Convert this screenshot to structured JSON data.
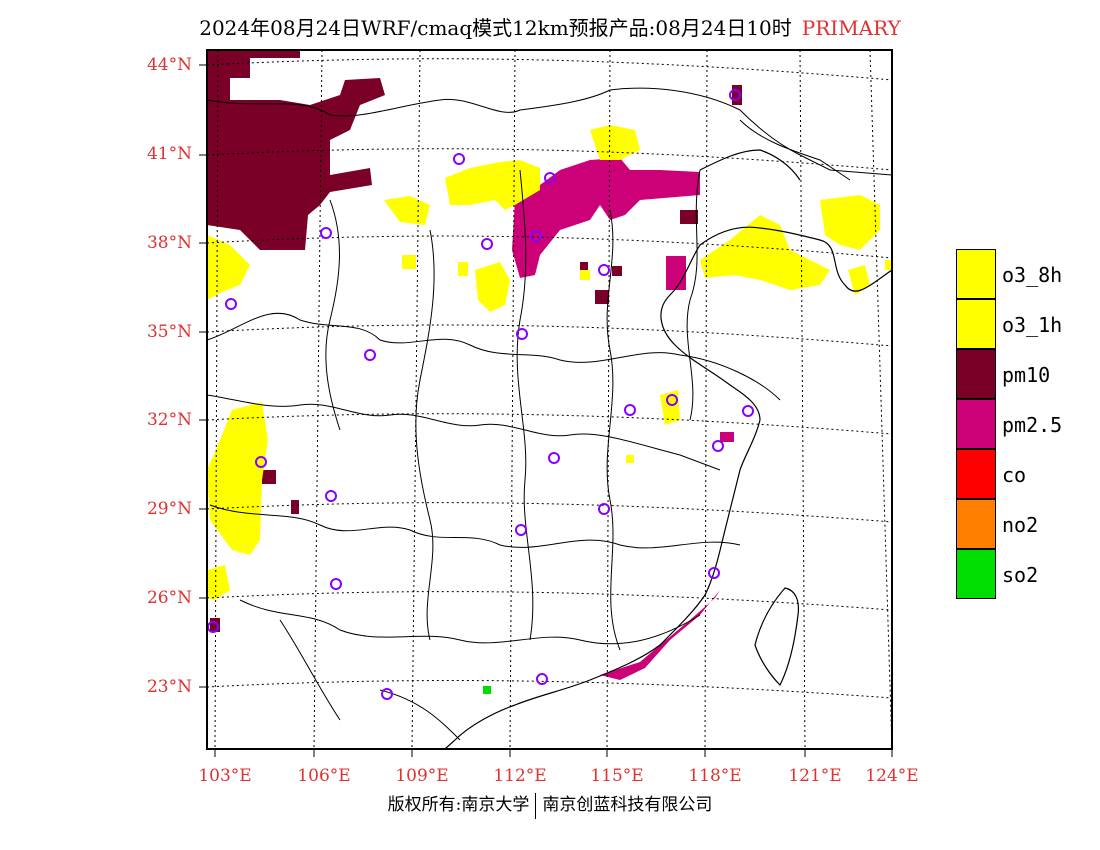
{
  "header": {
    "title": "2024年08月24日WRF/cmaq模式12km预报产品:08月24日10时",
    "tag": "PRIMARY"
  },
  "axes": {
    "lat_labels": [
      "44°N",
      "41°N",
      "38°N",
      "35°N",
      "32°N",
      "29°N",
      "26°N",
      "23°N"
    ],
    "lon_labels": [
      "103°E",
      "106°E",
      "109°E",
      "112°E",
      "115°E",
      "118°E",
      "121°E",
      "124°E"
    ]
  },
  "legend": {
    "items": [
      {
        "label": "o3_8h",
        "color": "#ffff00"
      },
      {
        "label": "o3_1h",
        "color": "#ffff00"
      },
      {
        "label": "pm10",
        "color": "#7a0028"
      },
      {
        "label": "pm2.5",
        "color": "#cc0077"
      },
      {
        "label": "co",
        "color": "#ff0000"
      },
      {
        "label": "no2",
        "color": "#ff7f00"
      },
      {
        "label": "so2",
        "color": "#00dd00"
      }
    ]
  },
  "footer": {
    "left": "版权所有:南京大学",
    "right": "南京创蓝科技有限公司"
  },
  "colors": {
    "axis_label": "#e03030",
    "station_marker": "#8800ff"
  }
}
